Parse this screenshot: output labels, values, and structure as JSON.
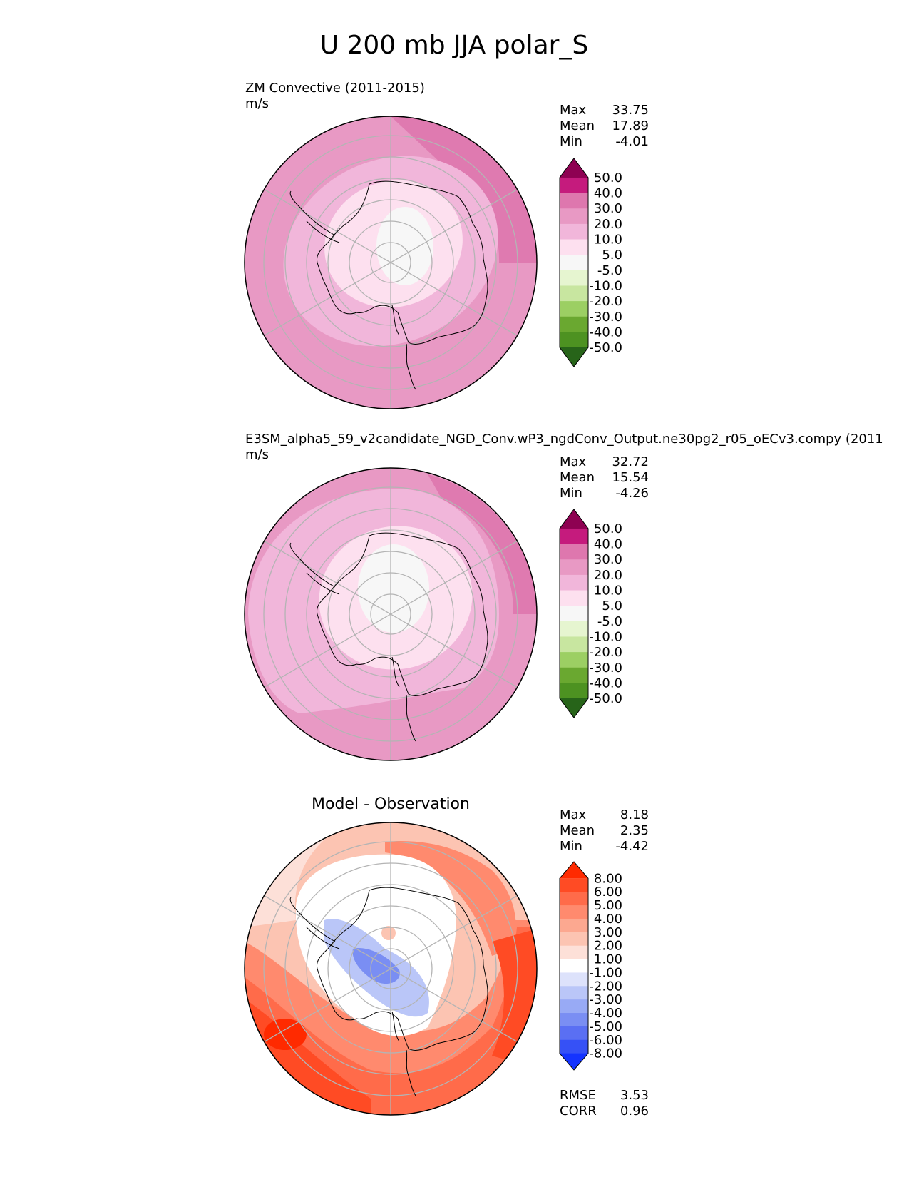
{
  "figure": {
    "title": "U 200 mb JJA polar_S"
  },
  "panels": [
    {
      "title_line1": "ZM Convective (2011-2015)",
      "title_line2": "m/s",
      "center_title": "",
      "stats": [
        {
          "label": "Max",
          "value": "33.75"
        },
        {
          "label": "Mean",
          "value": "17.89"
        },
        {
          "label": "Min",
          "value": "-4.01"
        }
      ],
      "extra_stats": []
    },
    {
      "title_line1": "E3SM_alpha5_59_v2candidate_NGD_Conv.wP3_ngdConv_Output.ne30pg2_r05_oECv3.compy (2011",
      "title_line2": "m/s",
      "center_title": "",
      "stats": [
        {
          "label": "Max",
          "value": "32.72"
        },
        {
          "label": "Mean",
          "value": "15.54"
        },
        {
          "label": "Min",
          "value": "-4.26"
        }
      ],
      "extra_stats": []
    },
    {
      "title_line1": "",
      "title_line2": "",
      "center_title": "Model - Observation",
      "stats": [
        {
          "label": "Max",
          "value": "8.18"
        },
        {
          "label": "Mean",
          "value": "2.35"
        },
        {
          "label": "Min",
          "value": "-4.42"
        }
      ],
      "extra_stats": [
        {
          "label": "RMSE",
          "value": "3.53"
        },
        {
          "label": "CORR",
          "value": "0.96"
        }
      ]
    }
  ],
  "chart_data": [
    {
      "type": "heatmap",
      "projection": "south polar stereographic",
      "title": "ZM Convective (2011-2015)",
      "units": "m/s",
      "colorbar_levels": [
        "50.0",
        "40.0",
        "30.0",
        "20.0",
        "10.0",
        "5.0",
        "-5.0",
        "-10.0",
        "-20.0",
        "-30.0",
        "-40.0",
        "-50.0"
      ],
      "colorbar_colors": [
        "#8e0152",
        "#c51b7d",
        "#de77ae",
        "#e899c4",
        "#f1b6da",
        "#fde0ef",
        "#f7f7f7",
        "#e6f5d0",
        "#c8e6a0",
        "#9ccf63",
        "#6aa830",
        "#4d9221",
        "#276419"
      ],
      "field": {
        "polar": "#f7f7f7",
        "inner": "#fde0ef",
        "mid": "#f1b6da",
        "outer": "#e899c4",
        "edge": "#de77ae"
      },
      "stats": {
        "max": 33.75,
        "mean": 17.89,
        "min": -4.01
      }
    },
    {
      "type": "heatmap",
      "projection": "south polar stereographic",
      "title": "E3SM_alpha5_59_v2candidate_NGD_Conv.wP3_ngdConv_Output.ne30pg2_r05_oECv3.compy (2011",
      "units": "m/s",
      "colorbar_levels": [
        "50.0",
        "40.0",
        "30.0",
        "20.0",
        "10.0",
        "5.0",
        "-5.0",
        "-10.0",
        "-20.0",
        "-30.0",
        "-40.0",
        "-50.0"
      ],
      "colorbar_colors": [
        "#8e0152",
        "#c51b7d",
        "#de77ae",
        "#e899c4",
        "#f1b6da",
        "#fde0ef",
        "#f7f7f7",
        "#e6f5d0",
        "#c8e6a0",
        "#9ccf63",
        "#6aa830",
        "#4d9221",
        "#276419"
      ],
      "field": {
        "polar": "#f7f7f7",
        "inner": "#fde0ef",
        "mid": "#f1b6da",
        "outer": "#e899c4",
        "edge": "#de77ae"
      },
      "stats": {
        "max": 32.72,
        "mean": 15.54,
        "min": -4.26
      }
    },
    {
      "type": "heatmap",
      "projection": "south polar stereographic",
      "title": "Model - Observation",
      "colorbar_levels": [
        "8.00",
        "6.00",
        "5.00",
        "4.00",
        "3.00",
        "2.00",
        "1.00",
        "-1.00",
        "-2.00",
        "-3.00",
        "-4.00",
        "-5.00",
        "-6.00",
        "-8.00"
      ],
      "colorbar_colors": [
        "#ff2a00",
        "#ff4b24",
        "#ff6b4a",
        "#ff8a6e",
        "#fca890",
        "#fcc4b2",
        "#fde0d8",
        "#ffffff",
        "#dde2fb",
        "#bac6f8",
        "#98aaf5",
        "#7a8ef3",
        "#5a6ff3",
        "#3651f6",
        "#1433ff"
      ],
      "field": {
        "base": "#fcc4b2",
        "center": "#ffffff",
        "weak_pos": "#fde0d8",
        "neg1": "#bac6f8",
        "neg2": "#7a8ef3",
        "pos1": "#ff8a6e",
        "pos2": "#ff4b24",
        "pos3": "#ff2a00"
      },
      "stats": {
        "max": 8.18,
        "mean": 2.35,
        "min": -4.42,
        "rmse": 3.53,
        "corr": 0.96
      }
    }
  ]
}
